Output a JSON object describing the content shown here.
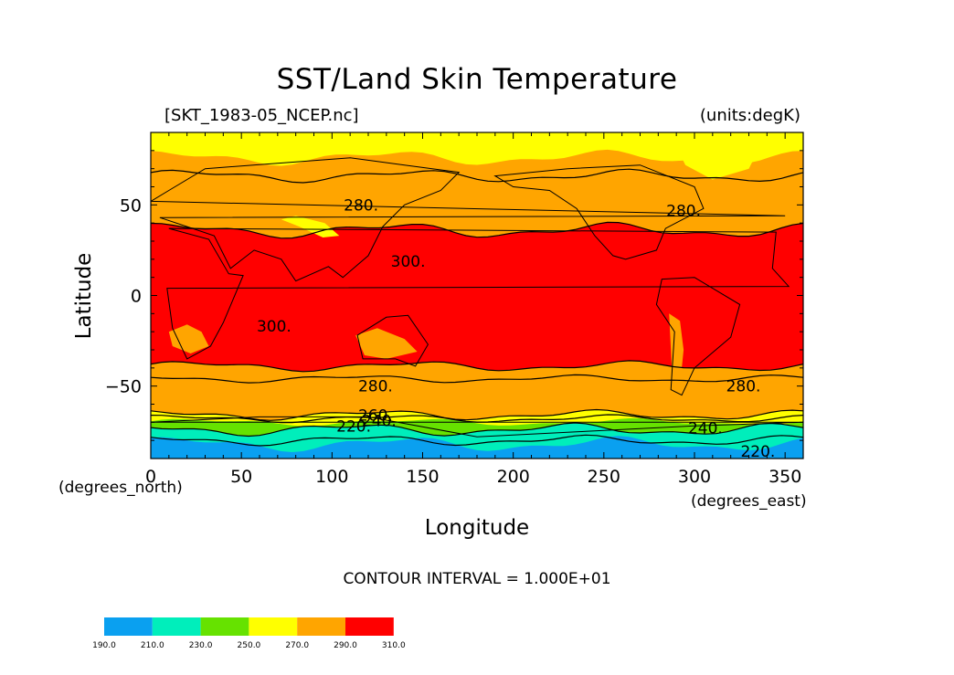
{
  "chart_data": {
    "type": "heatmap",
    "title": "SST/Land Skin Temperature",
    "subtitle_left": "[SKT_1983-05_NCEP.nc]",
    "subtitle_right": "(units:degK)",
    "xlabel": "Longitude",
    "ylabel": "Latitude",
    "x_unit": "(degrees_east)",
    "y_unit": "(degrees_north)",
    "xlim": [
      0,
      360
    ],
    "ylim": [
      -90,
      90
    ],
    "x_ticks": [
      0,
      50,
      100,
      150,
      200,
      250,
      300,
      350
    ],
    "y_ticks": [
      -50,
      0,
      50
    ],
    "contour_interval_text": "CONTOUR INTERVAL = 1.000E+01",
    "contour_labels": [
      {
        "text": "280.",
        "lon": 116,
        "lat": 50
      },
      {
        "text": "300.",
        "lon": 142,
        "lat": 19
      },
      {
        "text": "300.",
        "lon": 68,
        "lat": -17
      },
      {
        "text": "280.",
        "lon": 294,
        "lat": 47
      },
      {
        "text": "280.",
        "lon": 124,
        "lat": -50
      },
      {
        "text": "280.",
        "lon": 327,
        "lat": -50
      },
      {
        "text": "260.",
        "lon": 124,
        "lat": -66
      },
      {
        "text": "240.",
        "lon": 126,
        "lat": -69
      },
      {
        "text": "220.",
        "lon": 112,
        "lat": -72
      },
      {
        "text": "240.",
        "lon": 306,
        "lat": -73
      },
      {
        "text": "220.",
        "lon": 335,
        "lat": -86
      }
    ],
    "colorbar": {
      "levels": [
        "190.0",
        "210.0",
        "230.0",
        "250.0",
        "270.0",
        "290.0",
        "310.0"
      ],
      "colors": [
        "#0aa0f0",
        "#00eebb",
        "#66e200",
        "#ffff00",
        "#ffa500",
        "#ff0000"
      ]
    }
  }
}
